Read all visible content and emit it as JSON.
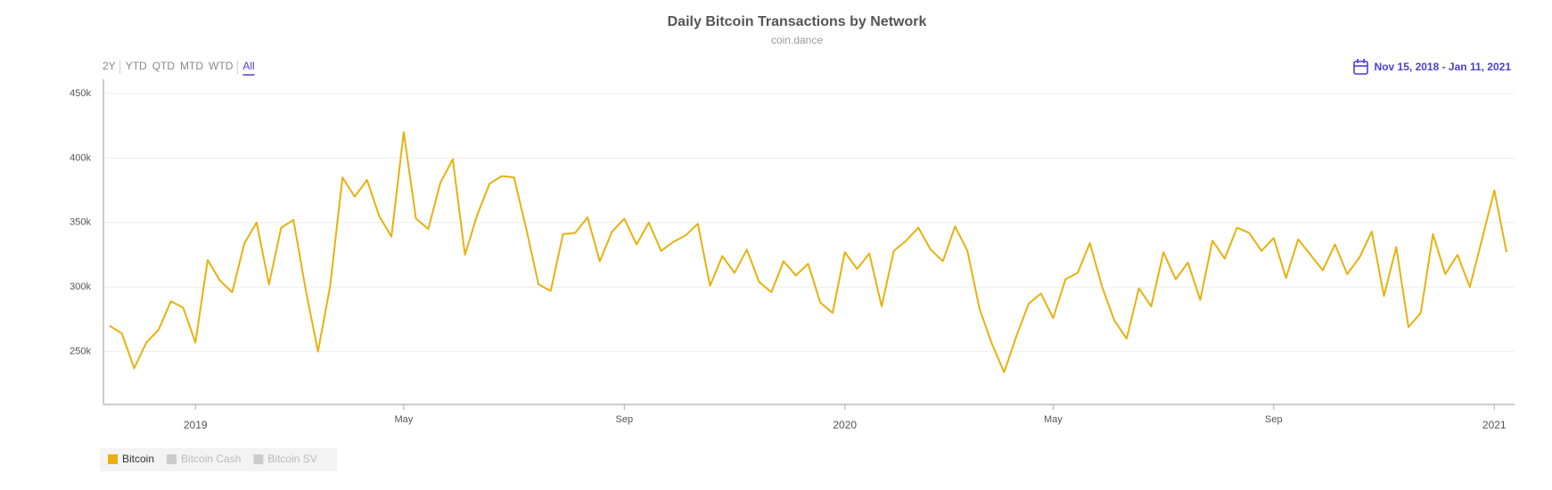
{
  "chart_data": {
    "type": "line",
    "title": "Daily Bitcoin Transactions by Network",
    "subtitle": "coin.dance",
    "ranges": [
      "2Y",
      "YTD",
      "QTD",
      "MTD",
      "WTD",
      "All"
    ],
    "active_range": 5,
    "date_range": "Nov 15, 2018 - Jan 11, 2021",
    "categories": [
      null,
      null,
      null,
      null,
      null,
      null,
      null,
      "2019",
      null,
      null,
      null,
      null,
      null,
      null,
      null,
      null,
      null,
      null,
      null,
      null,
      null,
      null,
      null,
      null,
      "May",
      null,
      null,
      null,
      null,
      null,
      null,
      null,
      null,
      null,
      null,
      null,
      null,
      null,
      null,
      null,
      null,
      null,
      "Sep",
      null,
      null,
      null,
      null,
      null,
      null,
      null,
      null,
      null,
      null,
      null,
      null,
      null,
      null,
      null,
      null,
      null,
      "2020",
      null,
      null,
      null,
      null,
      null,
      null,
      null,
      null,
      null,
      null,
      null,
      null,
      null,
      null,
      null,
      null,
      "May",
      null,
      null,
      null,
      null,
      null,
      null,
      null,
      null,
      null,
      null,
      null,
      null,
      null,
      null,
      null,
      null,
      null,
      "Sep",
      null,
      null,
      null,
      null,
      null,
      null,
      null,
      null,
      null,
      null,
      null,
      null,
      null,
      null,
      null,
      null,
      null,
      "2021",
      null
    ],
    "series": [
      {
        "name": "Bitcoin",
        "color": "#e8b10e",
        "visible": true,
        "values": [
          270000,
          264000,
          237000,
          257000,
          267000,
          289000,
          284000,
          257000,
          321000,
          305000,
          296000,
          334000,
          350000,
          302000,
          346000,
          352000,
          298000,
          250000,
          301000,
          385000,
          370000,
          383000,
          355000,
          339000,
          420000,
          353000,
          345000,
          381000,
          399000,
          325000,
          356000,
          380000,
          386000,
          385000,
          345000,
          302000,
          297000,
          341000,
          342000,
          354000,
          320000,
          343000,
          353000,
          333000,
          350000,
          328000,
          335000,
          340000,
          349000,
          301000,
          324000,
          311000,
          329000,
          304000,
          296000,
          320000,
          309000,
          318000,
          288000,
          280000,
          327000,
          314000,
          326000,
          285000,
          328000,
          336000,
          346000,
          329000,
          320000,
          347000,
          328000,
          283000,
          256000,
          234000,
          262000,
          287000,
          295000,
          276000,
          306000,
          311000,
          334000,
          300000,
          274000,
          260000,
          299000,
          285000,
          327000,
          306000,
          319000,
          290000,
          336000,
          322000,
          346000,
          342000,
          328000,
          338000,
          307000,
          337000,
          325000,
          313000,
          333000,
          310000,
          323000,
          343000,
          293000,
          331000,
          269000,
          280000,
          341000,
          310000,
          325000,
          300000,
          337000,
          375000,
          327000
        ]
      },
      {
        "name": "Bitcoin Cash",
        "color": "#cccccc",
        "visible": false
      },
      {
        "name": "Bitcoin SV",
        "color": "#cccccc",
        "visible": false
      }
    ],
    "ylim": [
      209000,
      461000
    ],
    "yticks": [
      {
        "value": 250000,
        "label": "250k"
      },
      {
        "value": 300000,
        "label": "300k"
      },
      {
        "value": 350000,
        "label": "350k"
      },
      {
        "value": 400000,
        "label": "400k"
      },
      {
        "value": 450000,
        "label": "450k"
      }
    ],
    "grid": true
  }
}
